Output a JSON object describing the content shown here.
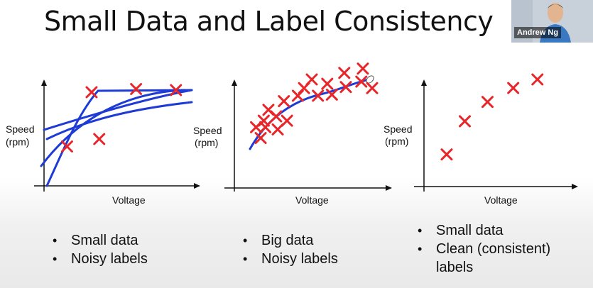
{
  "slide": {
    "title": "Small Data and Label Consistency",
    "presenter_name": "Andrew Ng"
  },
  "colors": {
    "marks": "#e8262a",
    "curves": "#1f3bd6",
    "axis": "#111111"
  },
  "panels": [
    {
      "bullets": [
        "Small data",
        "Noisy labels"
      ]
    },
    {
      "bullets": [
        "Big data",
        "Noisy labels"
      ]
    },
    {
      "bullets": [
        "Small data",
        "Clean (consistent) labels"
      ]
    }
  ],
  "chart_data": [
    {
      "type": "scatter",
      "xlabel": "Voltage",
      "ylabel": "Speed (rpm)",
      "grid": false,
      "points": [
        [
          0.15,
          0.37
        ],
        [
          0.31,
          0.88
        ],
        [
          0.36,
          0.44
        ],
        [
          0.6,
          0.91
        ],
        [
          0.86,
          0.9
        ]
      ],
      "annotations": "hand-drawn fit curves"
    },
    {
      "type": "scatter",
      "xlabel": "Voltage",
      "ylabel": "Speed (rpm)",
      "grid": false,
      "points": [
        [
          0.14,
          0.56
        ],
        [
          0.17,
          0.46
        ],
        [
          0.19,
          0.62
        ],
        [
          0.2,
          0.56
        ],
        [
          0.22,
          0.72
        ],
        [
          0.27,
          0.66
        ],
        [
          0.28,
          0.54
        ],
        [
          0.32,
          0.8
        ],
        [
          0.34,
          0.62
        ],
        [
          0.41,
          0.85
        ],
        [
          0.45,
          0.92
        ],
        [
          0.5,
          1.0
        ],
        [
          0.54,
          0.85
        ],
        [
          0.6,
          0.96
        ],
        [
          0.63,
          0.86
        ],
        [
          0.71,
          1.06
        ],
        [
          0.72,
          0.93
        ],
        [
          0.82,
          0.98
        ],
        [
          0.83,
          1.1
        ],
        [
          0.89,
          0.92
        ]
      ],
      "annotations": "hand-drawn fit curve"
    },
    {
      "type": "scatter",
      "xlabel": "Voltage",
      "ylabel": "Speed (rpm)",
      "grid": false,
      "points": [
        [
          0.15,
          0.3
        ],
        [
          0.27,
          0.61
        ],
        [
          0.42,
          0.79
        ],
        [
          0.59,
          0.92
        ],
        [
          0.75,
          1.0
        ]
      ]
    }
  ]
}
